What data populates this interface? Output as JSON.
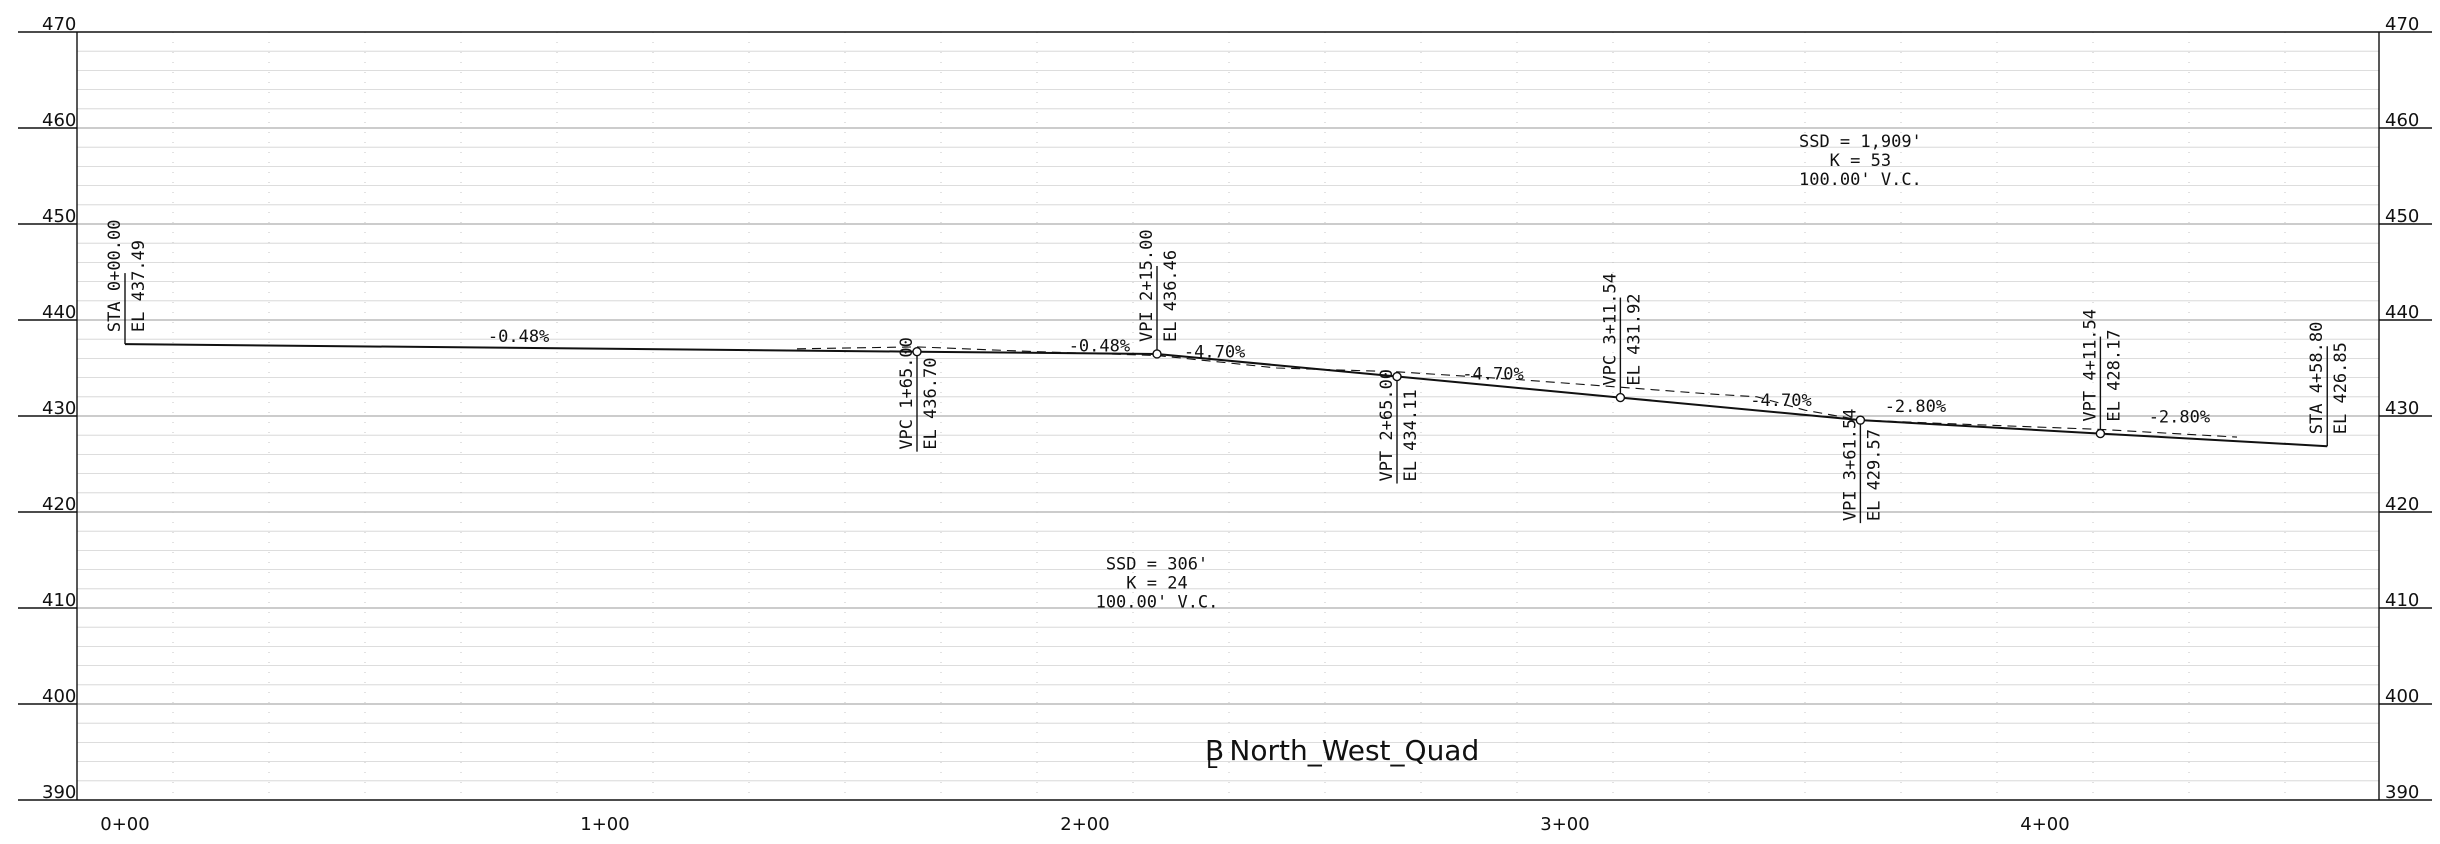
{
  "title": {
    "symbol": "B",
    "sub": "L",
    "name": "North_West_Quad"
  },
  "elevation_labels": [
    "470",
    "460",
    "450",
    "440",
    "430",
    "420",
    "410",
    "400",
    "390"
  ],
  "elevation_values": [
    470,
    460,
    450,
    440,
    430,
    420,
    410,
    400,
    390
  ],
  "station_labels": [
    "0+00",
    "1+00",
    "2+00",
    "3+00",
    "4+00"
  ],
  "station_values": [
    0,
    100,
    200,
    300,
    400
  ],
  "chart_data": {
    "type": "line",
    "x_range": [
      -10,
      480
    ],
    "y_range": [
      390,
      470
    ],
    "series": [
      {
        "points": [
          [
            0,
            437.49
          ],
          [
            165,
            436.7
          ],
          [
            215,
            436.46
          ],
          [
            265,
            434.11
          ],
          [
            311.54,
            431.92
          ],
          [
            361.54,
            429.57
          ],
          [
            411.54,
            428.17
          ],
          [
            458.8,
            426.85
          ]
        ]
      },
      {
        "style": "dashed",
        "points": [
          [
            140,
            437.0
          ],
          [
            165,
            437.2
          ],
          [
            190,
            436.7
          ],
          [
            215,
            436.3
          ],
          [
            240,
            435.0
          ],
          [
            265,
            434.6
          ],
          [
            290,
            433.8
          ],
          [
            311.54,
            433.0
          ],
          [
            330,
            432.3
          ],
          [
            340,
            432.0
          ],
          [
            350,
            430.6
          ],
          [
            361.54,
            429.57
          ],
          [
            380,
            429.2
          ],
          [
            411.54,
            428.6
          ],
          [
            440,
            427.8
          ]
        ]
      }
    ],
    "grades": [
      {
        "text": "-0.48%",
        "x": 82,
        "y": 437.3
      },
      {
        "text": "-0.48%",
        "x": 203,
        "y": 436.3
      },
      {
        "text": "-4.70%",
        "x": 227,
        "y": 435.7
      },
      {
        "text": "-4.70%",
        "x": 285,
        "y": 433.4
      },
      {
        "text": "-4.70%",
        "x": 345,
        "y": 430.6
      },
      {
        "text": "-2.80%",
        "x": 373,
        "y": 430.0
      },
      {
        "text": "-2.80%",
        "x": 428,
        "y": 428.9
      }
    ],
    "points": [
      {
        "id": "sta-start",
        "x": 0,
        "y": 437.49,
        "dir": "up",
        "ext": 71,
        "marker": false,
        "line1": "STA 0+00.00",
        "line2": "EL 437.49"
      },
      {
        "id": "vpc-1",
        "x": 165,
        "y": 436.7,
        "dir": "down",
        "ext": 100,
        "marker": true,
        "line1": "VPC 1+65.00",
        "line2": "EL 436.70"
      },
      {
        "id": "vpi-1",
        "x": 215,
        "y": 436.46,
        "dir": "up",
        "ext": 88,
        "marker": true,
        "line1": "VPI 2+15.00",
        "line2": "EL 436.46"
      },
      {
        "id": "vpt-1",
        "x": 265,
        "y": 434.11,
        "dir": "down",
        "ext": 107,
        "marker": true,
        "line1": "VPT 2+65.00",
        "line2": "EL 434.11"
      },
      {
        "id": "vpc-2",
        "x": 311.54,
        "y": 431.92,
        "dir": "up",
        "ext": 100,
        "marker": true,
        "line1": "VPC 3+11.54",
        "line2": "EL 431.92"
      },
      {
        "id": "vpi-2",
        "x": 361.54,
        "y": 429.57,
        "dir": "down",
        "ext": 103,
        "marker": true,
        "line1": "VPI 3+61.54",
        "line2": "EL 429.57"
      },
      {
        "id": "vpt-2",
        "x": 411.54,
        "y": 428.17,
        "dir": "up",
        "ext": 97,
        "marker": true,
        "line1": "VPT 4+11.54",
        "line2": "EL 428.17"
      },
      {
        "id": "sta-end",
        "x": 458.8,
        "y": 426.85,
        "dir": "up",
        "ext": 100,
        "marker": false,
        "line1": "STA 4+58.80",
        "line2": "EL 426.85"
      }
    ],
    "curves": [
      {
        "id": "curve-1",
        "x": 215,
        "y": 414,
        "lines": [
          "SSD = 306'",
          "K = 24",
          "100.00' V.C."
        ]
      },
      {
        "id": "curve-2",
        "x": 361.54,
        "y": 458,
        "lines": [
          "SSD = 1,909'",
          "K = 53",
          "100.00' V.C."
        ]
      }
    ]
  }
}
